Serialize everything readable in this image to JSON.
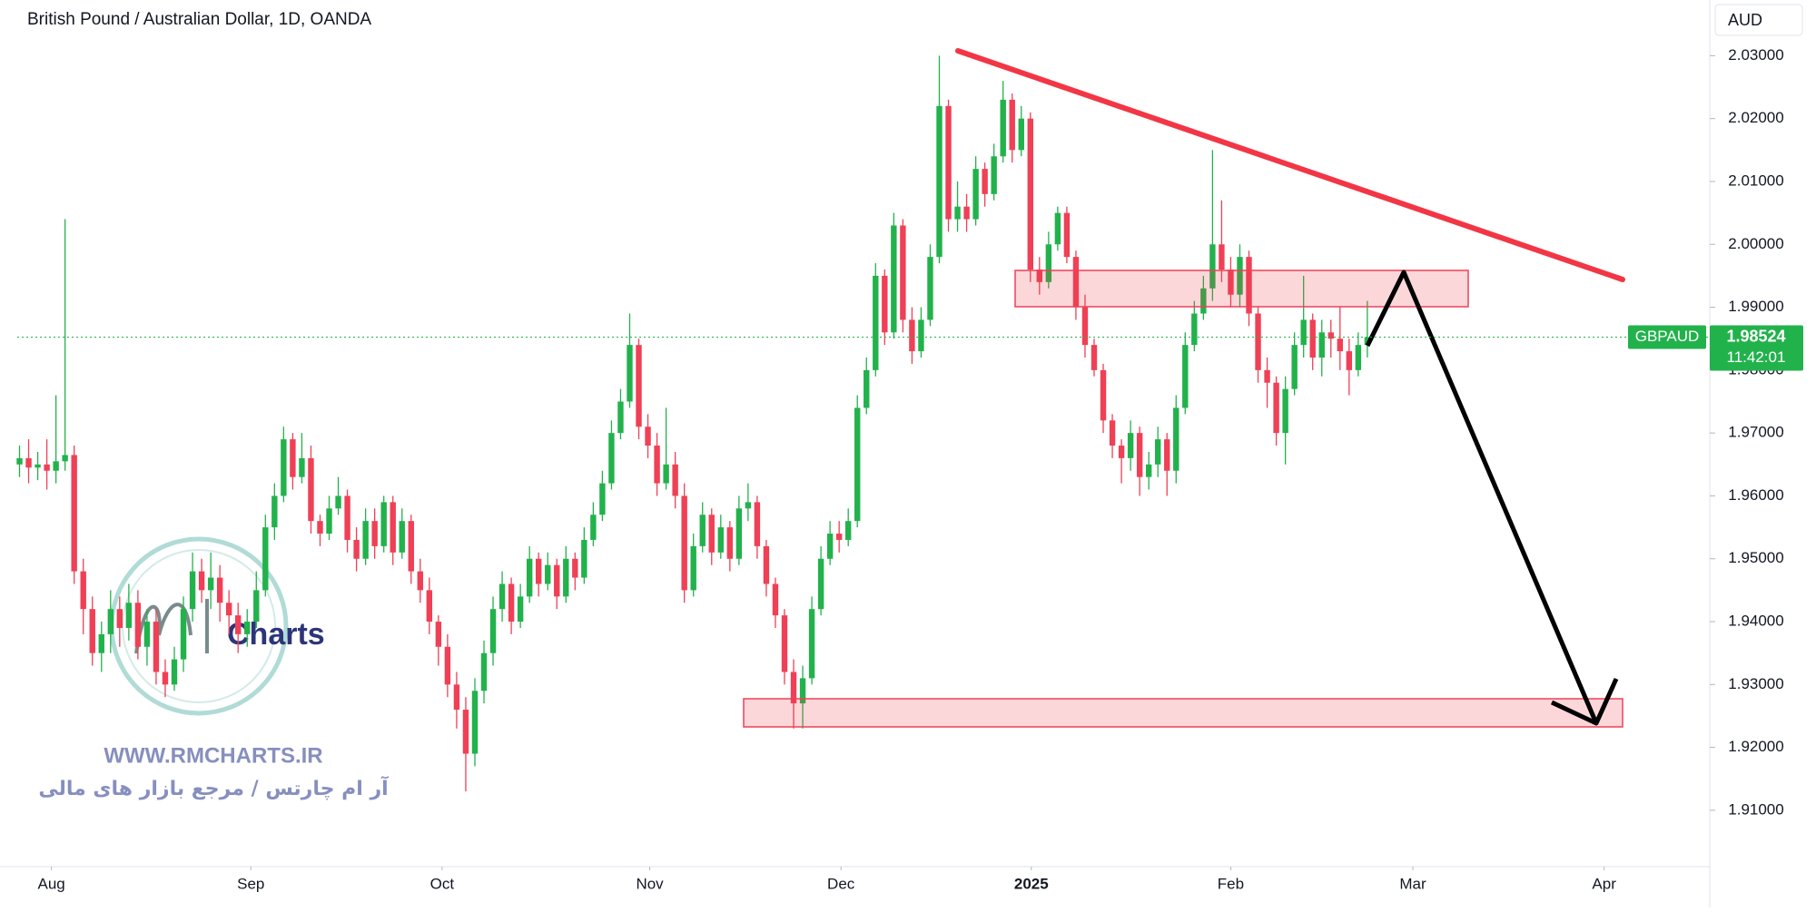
{
  "chart_data": {
    "type": "candlestick",
    "title": "British Pound / Australian Dollar, 1D, OANDA",
    "currency": "AUD",
    "symbol": "GBPAUD",
    "countdown": "11:42:01",
    "up_color": "#22b24c",
    "down_color": "#ef4056",
    "watermark": {
      "logo": "Charts",
      "url": "WWW.RMCHARTS.IR",
      "tagline": "آر ام چارتس / مرجع بازار های مالی"
    },
    "xlim": [
      -0.25,
      185.6
    ],
    "xticks": [
      {
        "value": 3.5,
        "label": "Aug"
      },
      {
        "value": 25.4,
        "label": "Sep"
      },
      {
        "value": 46.4,
        "label": "Oct"
      },
      {
        "value": 69.2,
        "label": "Nov"
      },
      {
        "value": 90.2,
        "label": "Dec"
      },
      {
        "value": 111.1,
        "label": "2025"
      },
      {
        "value": 133,
        "label": "Feb"
      },
      {
        "value": 153,
        "label": "Mar"
      },
      {
        "value": 174,
        "label": "Apr"
      }
    ],
    "ylim": [
      1.90133,
      2.03886
    ],
    "yticks": [
      {
        "value": 1.91,
        "label": "1.91000"
      },
      {
        "value": 1.92,
        "label": "1.92000"
      },
      {
        "value": 1.93,
        "label": "1.93000"
      },
      {
        "value": 1.94,
        "label": "1.94000"
      },
      {
        "value": 1.95,
        "label": "1.95000"
      },
      {
        "value": 1.96,
        "label": "1.96000"
      },
      {
        "value": 1.97,
        "label": "1.97000"
      },
      {
        "value": 1.98,
        "label": "1.98000"
      },
      {
        "value": 1.99,
        "label": "1.99000"
      },
      {
        "value": 2.0,
        "label": "2.00000"
      },
      {
        "value": 2.01,
        "label": "2.01000"
      },
      {
        "value": 2.02,
        "label": "2.02000"
      },
      {
        "value": 2.03,
        "label": "2.03000"
      }
    ],
    "ohlc": [
      [
        1.965,
        1.968,
        1.963,
        1.966
      ],
      [
        1.966,
        1.969,
        1.962,
        1.9645
      ],
      [
        1.9645,
        1.967,
        1.9625,
        1.965
      ],
      [
        1.965,
        1.969,
        1.961,
        1.964
      ],
      [
        1.964,
        1.976,
        1.962,
        1.9655
      ],
      [
        1.9655,
        2.004,
        1.964,
        1.9665
      ],
      [
        1.9665,
        1.968,
        1.946,
        1.948
      ],
      [
        1.948,
        1.95,
        1.938,
        1.942
      ],
      [
        1.942,
        1.944,
        1.933,
        1.935
      ],
      [
        1.935,
        1.94,
        1.932,
        1.938
      ],
      [
        1.938,
        1.945,
        1.935,
        1.942
      ],
      [
        1.942,
        1.944,
        1.936,
        1.939
      ],
      [
        1.939,
        1.946,
        1.937,
        1.943
      ],
      [
        1.943,
        1.945,
        1.934,
        1.936
      ],
      [
        1.936,
        1.942,
        1.933,
        1.94
      ],
      [
        1.94,
        1.942,
        1.93,
        1.932
      ],
      [
        1.932,
        1.934,
        1.928,
        1.93
      ],
      [
        1.93,
        1.936,
        1.929,
        1.934
      ],
      [
        1.934,
        1.944,
        1.932,
        1.942
      ],
      [
        1.942,
        1.951,
        1.94,
        1.948
      ],
      [
        1.948,
        1.95,
        1.943,
        1.945
      ],
      [
        1.945,
        1.951,
        1.942,
        1.947
      ],
      [
        1.947,
        1.949,
        1.94,
        1.943
      ],
      [
        1.943,
        1.945,
        1.938,
        1.941
      ],
      [
        1.941,
        1.943,
        1.935,
        1.938
      ],
      [
        1.938,
        1.942,
        1.936,
        1.94
      ],
      [
        1.94,
        1.948,
        1.939,
        1.945
      ],
      [
        1.945,
        1.957,
        1.944,
        1.955
      ],
      [
        1.955,
        1.962,
        1.953,
        1.96
      ],
      [
        1.96,
        1.971,
        1.959,
        1.969
      ],
      [
        1.969,
        1.97,
        1.961,
        1.963
      ],
      [
        1.963,
        1.97,
        1.962,
        1.966
      ],
      [
        1.966,
        1.968,
        1.954,
        1.956
      ],
      [
        1.956,
        1.957,
        1.952,
        1.954
      ],
      [
        1.954,
        1.96,
        1.953,
        1.958
      ],
      [
        1.958,
        1.963,
        1.957,
        1.96
      ],
      [
        1.96,
        1.961,
        1.951,
        1.953
      ],
      [
        1.953,
        1.955,
        1.948,
        1.95
      ],
      [
        1.95,
        1.958,
        1.949,
        1.956
      ],
      [
        1.956,
        1.958,
        1.95,
        1.952
      ],
      [
        1.952,
        1.96,
        1.951,
        1.959
      ],
      [
        1.959,
        1.96,
        1.949,
        1.951
      ],
      [
        1.951,
        1.958,
        1.95,
        1.956
      ],
      [
        1.956,
        1.957,
        1.946,
        1.948
      ],
      [
        1.948,
        1.95,
        1.943,
        1.945
      ],
      [
        1.945,
        1.947,
        1.938,
        1.94
      ],
      [
        1.94,
        1.941,
        1.933,
        1.936
      ],
      [
        1.936,
        1.938,
        1.928,
        1.93
      ],
      [
        1.93,
        1.932,
        1.923,
        1.926
      ],
      [
        1.926,
        1.928,
        1.913,
        1.919
      ],
      [
        1.919,
        1.931,
        1.917,
        1.929
      ],
      [
        1.929,
        1.937,
        1.927,
        1.935
      ],
      [
        1.935,
        1.944,
        1.933,
        1.942
      ],
      [
        1.942,
        1.948,
        1.94,
        1.946
      ],
      [
        1.946,
        1.947,
        1.938,
        1.94
      ],
      [
        1.94,
        1.946,
        1.939,
        1.944
      ],
      [
        1.944,
        1.952,
        1.943,
        1.95
      ],
      [
        1.95,
        1.951,
        1.944,
        1.946
      ],
      [
        1.946,
        1.951,
        1.945,
        1.949
      ],
      [
        1.949,
        1.95,
        1.942,
        1.944
      ],
      [
        1.944,
        1.952,
        1.943,
        1.95
      ],
      [
        1.95,
        1.951,
        1.945,
        1.947
      ],
      [
        1.947,
        1.955,
        1.946,
        1.953
      ],
      [
        1.953,
        1.959,
        1.952,
        1.957
      ],
      [
        1.957,
        1.964,
        1.956,
        1.962
      ],
      [
        1.962,
        1.972,
        1.961,
        1.97
      ],
      [
        1.97,
        1.977,
        1.969,
        1.975
      ],
      [
        1.975,
        1.989,
        1.974,
        1.984
      ],
      [
        1.984,
        1.985,
        1.969,
        1.971
      ],
      [
        1.971,
        1.973,
        1.966,
        1.968
      ],
      [
        1.968,
        1.97,
        1.96,
        1.962
      ],
      [
        1.962,
        1.974,
        1.961,
        1.965
      ],
      [
        1.965,
        1.967,
        1.958,
        1.96
      ],
      [
        1.96,
        1.962,
        1.943,
        1.945
      ],
      [
        1.945,
        1.954,
        1.944,
        1.952
      ],
      [
        1.952,
        1.959,
        1.951,
        1.957
      ],
      [
        1.957,
        1.958,
        1.949,
        1.951
      ],
      [
        1.951,
        1.957,
        1.95,
        1.955
      ],
      [
        1.955,
        1.956,
        1.948,
        1.95
      ],
      [
        1.95,
        1.96,
        1.949,
        1.958
      ],
      [
        1.958,
        1.962,
        1.956,
        1.959
      ],
      [
        1.959,
        1.96,
        1.95,
        1.952
      ],
      [
        1.952,
        1.953,
        1.944,
        1.946
      ],
      [
        1.946,
        1.947,
        1.939,
        1.941
      ],
      [
        1.941,
        1.942,
        1.93,
        1.932
      ],
      [
        1.932,
        1.934,
        1.923,
        1.927
      ],
      [
        1.927,
        1.933,
        1.923,
        1.931
      ],
      [
        1.931,
        1.944,
        1.93,
        1.942
      ],
      [
        1.942,
        1.952,
        1.941,
        1.95
      ],
      [
        1.95,
        1.956,
        1.949,
        1.954
      ],
      [
        1.954,
        1.956,
        1.951,
        1.953
      ],
      [
        1.953,
        1.958,
        1.952,
        1.956
      ],
      [
        1.956,
        1.976,
        1.955,
        1.974
      ],
      [
        1.974,
        1.982,
        1.973,
        1.98
      ],
      [
        1.98,
        1.997,
        1.979,
        1.995
      ],
      [
        1.995,
        1.996,
        1.984,
        1.986
      ],
      [
        1.986,
        2.005,
        1.985,
        2.003
      ],
      [
        2.003,
        2.004,
        1.986,
        1.988
      ],
      [
        1.988,
        1.99,
        1.981,
        1.983
      ],
      [
        1.983,
        1.99,
        1.982,
        1.988
      ],
      [
        1.988,
        2.0,
        1.987,
        1.998
      ],
      [
        1.998,
        2.03,
        1.997,
        2.022
      ],
      [
        2.022,
        2.023,
        2.002,
        2.004
      ],
      [
        2.004,
        2.01,
        2.002,
        2.006
      ],
      [
        2.006,
        2.008,
        2.002,
        2.004
      ],
      [
        2.004,
        2.014,
        2.003,
        2.012
      ],
      [
        2.012,
        2.013,
        2.006,
        2.008
      ],
      [
        2.008,
        2.016,
        2.007,
        2.014
      ],
      [
        2.014,
        2.026,
        2.013,
        2.023
      ],
      [
        2.023,
        2.024,
        2.013,
        2.015
      ],
      [
        2.015,
        2.022,
        2.014,
        2.02
      ],
      [
        2.02,
        2.021,
        1.994,
        1.996
      ],
      [
        1.996,
        1.998,
        1.992,
        1.994
      ],
      [
        1.994,
        2.002,
        1.993,
        2.0
      ],
      [
        2.0,
        2.006,
        1.999,
        2.005
      ],
      [
        2.005,
        2.006,
        1.997,
        1.998
      ],
      [
        1.998,
        1.999,
        1.988,
        1.99
      ],
      [
        1.99,
        1.992,
        1.982,
        1.984
      ],
      [
        1.984,
        1.985,
        1.979,
        1.98
      ],
      [
        1.98,
        1.981,
        1.97,
        1.972
      ],
      [
        1.972,
        1.973,
        1.966,
        1.968
      ],
      [
        1.968,
        1.969,
        1.962,
        1.966
      ],
      [
        1.966,
        1.972,
        1.964,
        1.97
      ],
      [
        1.97,
        1.971,
        1.96,
        1.963
      ],
      [
        1.963,
        1.967,
        1.961,
        1.965
      ],
      [
        1.965,
        1.971,
        1.963,
        1.969
      ],
      [
        1.969,
        1.97,
        1.96,
        1.964
      ],
      [
        1.964,
        1.976,
        1.962,
        1.974
      ],
      [
        1.974,
        1.986,
        1.973,
        1.984
      ],
      [
        1.984,
        1.991,
        1.983,
        1.989
      ],
      [
        1.989,
        1.995,
        1.988,
        1.993
      ],
      [
        1.993,
        2.015,
        1.991,
        2.0
      ],
      [
        2.0,
        2.007,
        1.994,
        1.996
      ],
      [
        1.996,
        1.998,
        1.99,
        1.992
      ],
      [
        1.992,
        2.0,
        1.99,
        1.998
      ],
      [
        1.998,
        1.999,
        1.987,
        1.989
      ],
      [
        1.989,
        1.99,
        1.978,
        1.98
      ],
      [
        1.98,
        1.982,
        1.974,
        1.978
      ],
      [
        1.978,
        1.979,
        1.968,
        1.97
      ],
      [
        1.97,
        1.979,
        1.965,
        1.977
      ],
      [
        1.977,
        1.986,
        1.976,
        1.984
      ],
      [
        1.984,
        1.995,
        1.982,
        1.988
      ],
      [
        1.988,
        1.989,
        1.98,
        1.982
      ],
      [
        1.982,
        1.988,
        1.979,
        1.986
      ],
      [
        1.986,
        1.988,
        1.982,
        1.985
      ],
      [
        1.985,
        1.99,
        1.98,
        1.983
      ],
      [
        1.983,
        1.985,
        1.976,
        1.98
      ],
      [
        1.98,
        1.986,
        1.979,
        1.984
      ],
      [
        1.984,
        1.991,
        1.982,
        1.98524
      ]
    ]
  }
}
